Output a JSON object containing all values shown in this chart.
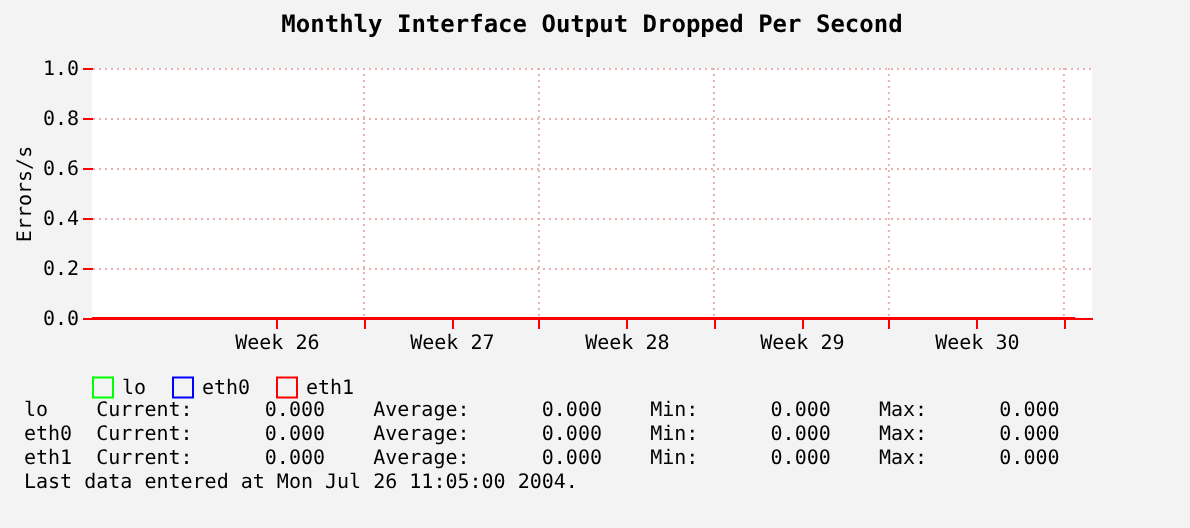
{
  "chart_data": {
    "type": "line",
    "title": "Monthly Interface Output Dropped Per Second",
    "ylabel": "Errors/s",
    "series": [
      {
        "name": "lo",
        "color": "#00ff00"
      },
      {
        "name": "eth0",
        "color": "#0000ff"
      },
      {
        "name": "eth1",
        "color": "#ff0000",
        "x": [
          "2004-06-17T03:00",
          "2004-07-26T11:00"
        ],
        "values": [
          0,
          0
        ]
      }
    ],
    "xlim": [
      "2004-06-17T03:00",
      "2004-07-27T03:00"
    ],
    "xticks": [
      {
        "value": "2004-06-24T12:00",
        "label": "Week 26"
      },
      {
        "value": "2004-06-28",
        "label": null
      },
      {
        "value": "2004-07-01T12:00",
        "label": "Week 27"
      },
      {
        "value": "2004-07-05",
        "label": null
      },
      {
        "value": "2004-07-08T12:00",
        "label": "Week 28"
      },
      {
        "value": "2004-07-12",
        "label": null
      },
      {
        "value": "2004-07-15T12:00",
        "label": "Week 29"
      },
      {
        "value": "2004-07-19",
        "label": null
      },
      {
        "value": "2004-07-22T12:00",
        "label": "Week 30"
      },
      {
        "value": "2004-07-26",
        "label": null
      }
    ],
    "ylim": [
      0,
      1
    ],
    "yticks": [
      {
        "value": 0,
        "label": "0.0"
      },
      {
        "value": 0.2,
        "label": "0.2"
      },
      {
        "value": 0.4,
        "label": "0.4"
      },
      {
        "value": 0.6,
        "label": "0.6"
      },
      {
        "value": 0.8,
        "label": "0.8"
      },
      {
        "value": 1,
        "label": "1.0"
      }
    ],
    "grid": true,
    "legend": "bottom left",
    "marker": "none",
    "line_style": "solid",
    "annotations": [
      "lo    Current:      0.000    Average:      0.000    Min:      0.000    Max:      0.000",
      "eth0  Current:      0.000    Average:      0.000    Min:      0.000    Max:      0.000",
      "eth1  Current:      0.000    Average:      0.000    Min:      0.000    Max:      0.000",
      "Last data entered at Mon Jul 26 11:05:00 2004."
    ]
  }
}
